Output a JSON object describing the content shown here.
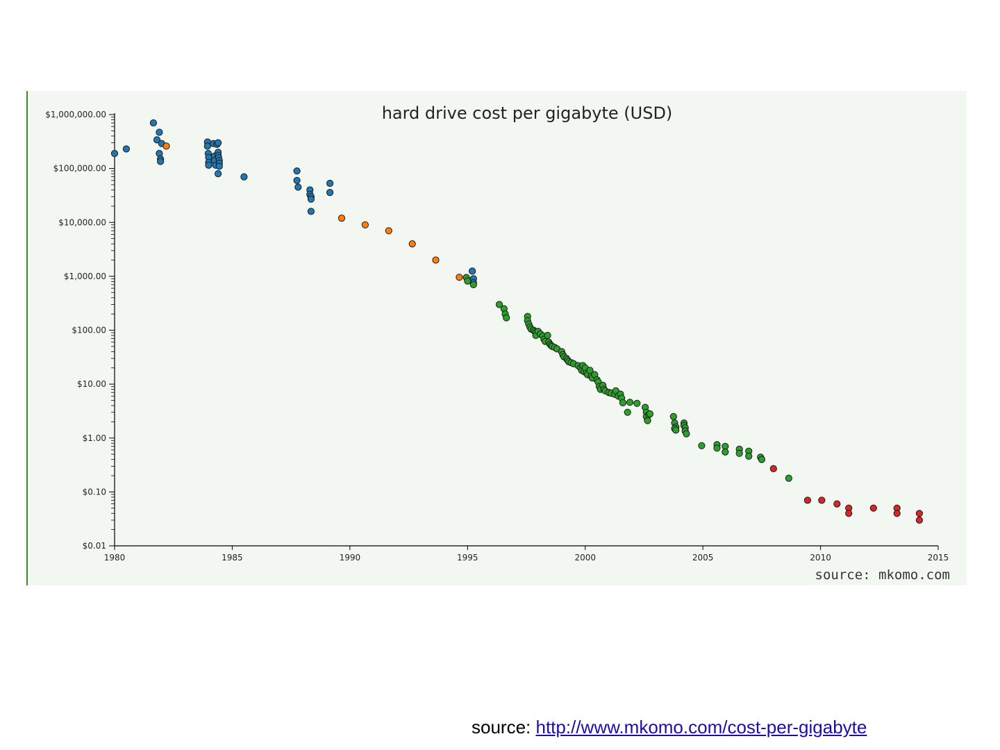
{
  "chart_data": {
    "type": "scatter",
    "title": "hard drive cost per gigabyte (USD)",
    "xlabel": "",
    "ylabel": "",
    "y_scale": "log",
    "xlim": [
      1980,
      2015
    ],
    "ylim": [
      0.01,
      1000000
    ],
    "x_ticks": [
      1980,
      1985,
      1990,
      1995,
      2000,
      2005,
      2010,
      2015
    ],
    "y_ticks": [
      {
        "value": 1000000,
        "label": "$1,000,000.00"
      },
      {
        "value": 100000,
        "label": "$100,000.00"
      },
      {
        "value": 10000,
        "label": "$10,000.00"
      },
      {
        "value": 1000,
        "label": "$1,000.00"
      },
      {
        "value": 100,
        "label": "$100.00"
      },
      {
        "value": 10,
        "label": "$10.00"
      },
      {
        "value": 1,
        "label": "$1.00"
      },
      {
        "value": 0.1,
        "label": "$0.10"
      },
      {
        "value": 0.01,
        "label": "$0.01"
      }
    ],
    "credit": "source: mkomo.com",
    "series": [
      {
        "color": "#1f77b4",
        "points": [
          [
            1980.0,
            190000
          ],
          [
            1980.5,
            230000
          ],
          [
            1981.65,
            700000
          ],
          [
            1981.8,
            340000
          ],
          [
            1981.9,
            470000
          ],
          [
            1981.9,
            190000
          ],
          [
            1981.95,
            150000
          ],
          [
            1981.95,
            135000
          ],
          [
            1982.0,
            290000
          ],
          [
            1983.95,
            310000
          ],
          [
            1983.95,
            260000
          ],
          [
            1983.98,
            190000
          ],
          [
            1984.0,
            160000
          ],
          [
            1984.0,
            130000
          ],
          [
            1984.0,
            115000
          ],
          [
            1984.2,
            290000
          ],
          [
            1984.25,
            170000
          ],
          [
            1984.25,
            140000
          ],
          [
            1984.3,
            115000
          ],
          [
            1984.35,
            280000
          ],
          [
            1984.4,
            300000
          ],
          [
            1984.4,
            200000
          ],
          [
            1984.4,
            175000
          ],
          [
            1984.42,
            160000
          ],
          [
            1984.45,
            140000
          ],
          [
            1984.45,
            125000
          ],
          [
            1984.45,
            110000
          ],
          [
            1984.4,
            80000
          ],
          [
            1985.5,
            70000
          ],
          [
            1987.75,
            90000
          ],
          [
            1987.75,
            60000
          ],
          [
            1987.8,
            45000
          ],
          [
            1988.3,
            40000
          ],
          [
            1988.3,
            33000
          ],
          [
            1988.35,
            30000
          ],
          [
            1988.35,
            27000
          ],
          [
            1988.35,
            16000
          ],
          [
            1989.15,
            53000
          ],
          [
            1989.15,
            36000
          ],
          [
            1995.2,
            1250.0
          ],
          [
            1995.25,
            900
          ],
          [
            1995.25,
            760
          ]
        ]
      },
      {
        "color": "#ff7f0e",
        "points": [
          [
            1982.2,
            260000
          ],
          [
            1989.65,
            12000
          ],
          [
            1990.65,
            9000
          ],
          [
            1991.65,
            7000
          ],
          [
            1992.65,
            4000
          ],
          [
            1993.65,
            2000
          ],
          [
            1994.65,
            960
          ]
        ]
      },
      {
        "color": "#2ca02c",
        "points": [
          [
            1994.95,
            950
          ],
          [
            1995.0,
            820
          ],
          [
            1995.25,
            700
          ],
          [
            1996.35,
            300
          ],
          [
            1996.55,
            250
          ],
          [
            1996.6,
            200
          ],
          [
            1996.65,
            170
          ],
          [
            1997.55,
            180
          ],
          [
            1997.55,
            150
          ],
          [
            1997.6,
            130
          ],
          [
            1997.65,
            115
          ],
          [
            1997.7,
            105
          ],
          [
            1997.8,
            100
          ],
          [
            1997.85,
            95
          ],
          [
            1997.9,
            90
          ],
          [
            1997.9,
            80
          ],
          [
            1998.0,
            95
          ],
          [
            1998.1,
            85
          ],
          [
            1998.2,
            78
          ],
          [
            1998.25,
            68
          ],
          [
            1998.3,
            62
          ],
          [
            1998.4,
            80
          ],
          [
            1998.45,
            60
          ],
          [
            1998.5,
            55
          ],
          [
            1998.55,
            52
          ],
          [
            1998.6,
            50
          ],
          [
            1998.7,
            48
          ],
          [
            1998.8,
            45
          ],
          [
            1999.0,
            40
          ],
          [
            1999.05,
            35
          ],
          [
            1999.1,
            32
          ],
          [
            1999.2,
            30
          ],
          [
            1999.25,
            28
          ],
          [
            1999.3,
            26
          ],
          [
            1999.4,
            25
          ],
          [
            1999.5,
            24
          ],
          [
            1999.7,
            22
          ],
          [
            1999.8,
            20
          ],
          [
            1999.85,
            18
          ],
          [
            1999.9,
            22
          ],
          [
            1999.95,
            17
          ],
          [
            2000.0,
            20
          ],
          [
            2000.05,
            16
          ],
          [
            2000.1,
            15
          ],
          [
            2000.2,
            18
          ],
          [
            2000.25,
            14
          ],
          [
            2000.3,
            13
          ],
          [
            2000.4,
            15
          ],
          [
            2000.5,
            12
          ],
          [
            2000.55,
            11
          ],
          [
            2000.6,
            9
          ],
          [
            2000.65,
            8
          ],
          [
            2000.75,
            9.5
          ],
          [
            2000.8,
            8
          ],
          [
            2000.85,
            7.5
          ],
          [
            2001.0,
            7
          ],
          [
            2001.1,
            6.8
          ],
          [
            2001.25,
            6.5
          ],
          [
            2001.3,
            7.5
          ],
          [
            2001.4,
            6
          ],
          [
            2001.5,
            6.5
          ],
          [
            2001.55,
            5.5
          ],
          [
            2001.6,
            4.5
          ],
          [
            2001.8,
            3
          ],
          [
            2001.9,
            4.6
          ],
          [
            2002.2,
            4.4
          ],
          [
            2002.55,
            3.7
          ],
          [
            2002.6,
            3
          ],
          [
            2002.6,
            2.5
          ],
          [
            2002.65,
            2.1
          ],
          [
            2002.7,
            2.7
          ],
          [
            2002.75,
            2.8
          ],
          [
            2003.75,
            2.5
          ],
          [
            2003.8,
            1.9
          ],
          [
            2003.85,
            1.6
          ],
          [
            2003.8,
            1.5
          ],
          [
            2003.85,
            1.4
          ],
          [
            2004.2,
            1.9
          ],
          [
            2004.2,
            1.7
          ],
          [
            2004.25,
            1.55
          ],
          [
            2004.25,
            1.35
          ],
          [
            2004.3,
            1.2
          ],
          [
            2004.95,
            0.72
          ],
          [
            2005.6,
            0.75
          ],
          [
            2005.6,
            0.65
          ],
          [
            2005.95,
            0.7
          ],
          [
            2005.95,
            0.55
          ],
          [
            2006.55,
            0.62
          ],
          [
            2006.55,
            0.52
          ],
          [
            2006.95,
            0.57
          ],
          [
            2006.95,
            0.46
          ],
          [
            2007.45,
            0.44
          ],
          [
            2007.5,
            0.4
          ],
          [
            2008.65,
            0.18
          ]
        ]
      },
      {
        "color": "#d62728",
        "points": [
          [
            2008.0,
            0.27
          ],
          [
            2009.45,
            0.07
          ],
          [
            2010.05,
            0.07
          ],
          [
            2010.7,
            0.06
          ],
          [
            2011.2,
            0.05
          ],
          [
            2011.2,
            0.04
          ],
          [
            2012.25,
            0.05
          ],
          [
            2013.25,
            0.05
          ],
          [
            2013.25,
            0.04
          ],
          [
            2014.2,
            0.04
          ],
          [
            2014.2,
            0.03
          ]
        ]
      }
    ]
  },
  "footer": {
    "prefix": "source: ",
    "link_text": "http://www.mkomo.com/cost-per-gigabyte"
  }
}
